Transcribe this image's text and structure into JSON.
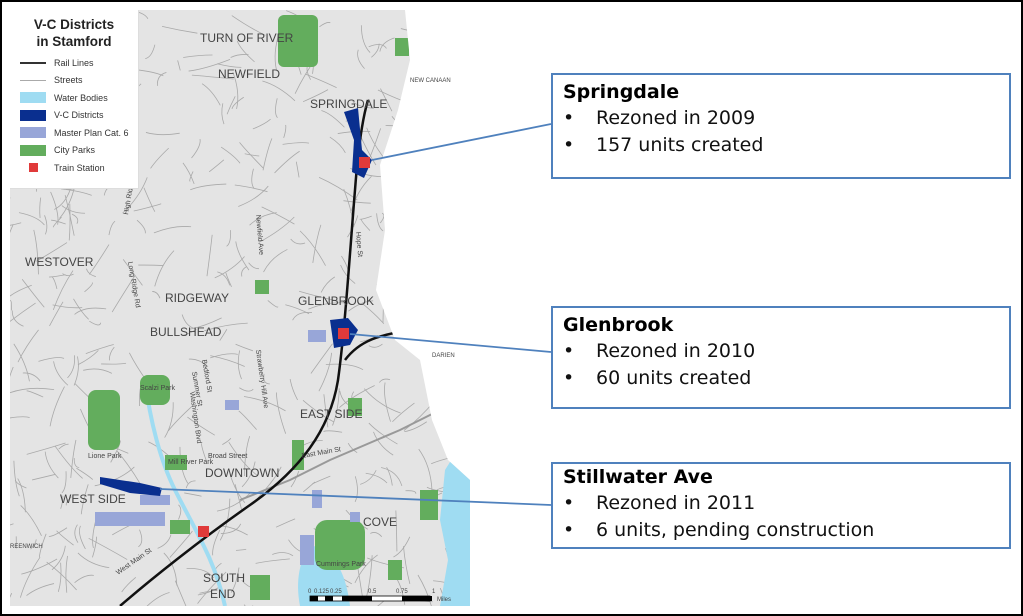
{
  "legend": {
    "title_line1": "V-C Districts",
    "title_line2": "in Stamford",
    "items": [
      {
        "label": "Rail Lines",
        "kind": "line",
        "color": "#333333"
      },
      {
        "label": "Streets",
        "kind": "line",
        "color": "#aaaaaa"
      },
      {
        "label": "Water Bodies",
        "kind": "fill",
        "color": "#9fdcf2"
      },
      {
        "label": "V-C Districts",
        "kind": "fill",
        "color": "#0a2f8f"
      },
      {
        "label": "Master Plan Cat. 6",
        "kind": "fill",
        "color": "#98a6d8"
      },
      {
        "label": "City Parks",
        "kind": "fill",
        "color": "#63ad5d"
      },
      {
        "label": "Train Station",
        "kind": "icon",
        "color": "#e03a3a"
      }
    ]
  },
  "map": {
    "neighborhoods": [
      "TURN OF RIVER",
      "NEWFIELD",
      "SPRINGDALE",
      "WESTOVER",
      "RIDGEWAY",
      "GLENBROOK",
      "BULLSHEAD",
      "EAST SIDE",
      "DOWNTOWN",
      "WEST SIDE",
      "COVE",
      "SOUTH",
      "END"
    ],
    "towns": [
      "NEW CANAAN",
      "DARIEN",
      "REENWICH"
    ],
    "streets": [
      "High Ridge Rd",
      "Long Ridge Rd",
      "Newfield Ave",
      "Hope St",
      "Strawberry Hill Ave",
      "Bedford St",
      "Summer St",
      "Washington Blvd",
      "Broad Street",
      "East Main St",
      "West Main St"
    ],
    "parks": [
      "Scalzi Park",
      "Lione Park",
      "Mill River Park",
      "Cummings Park"
    ],
    "scale": {
      "ticks": [
        "0",
        "0.125",
        "0.25",
        "0.5",
        "0.75",
        "1"
      ],
      "unit": "Miles"
    }
  },
  "callouts": [
    {
      "title": "Springdale",
      "bullets": [
        "Rezoned in 2009",
        "157 units created"
      ]
    },
    {
      "title": "Glenbrook",
      "bullets": [
        "Rezoned in 2010",
        "60 units created"
      ]
    },
    {
      "title": "Stillwater Ave",
      "bullets": [
        "Rezoned in 2011",
        "6 units, pending construction"
      ]
    }
  ],
  "colors": {
    "callout_border": "#4f81bd",
    "map_land": "#e4e4e4"
  }
}
